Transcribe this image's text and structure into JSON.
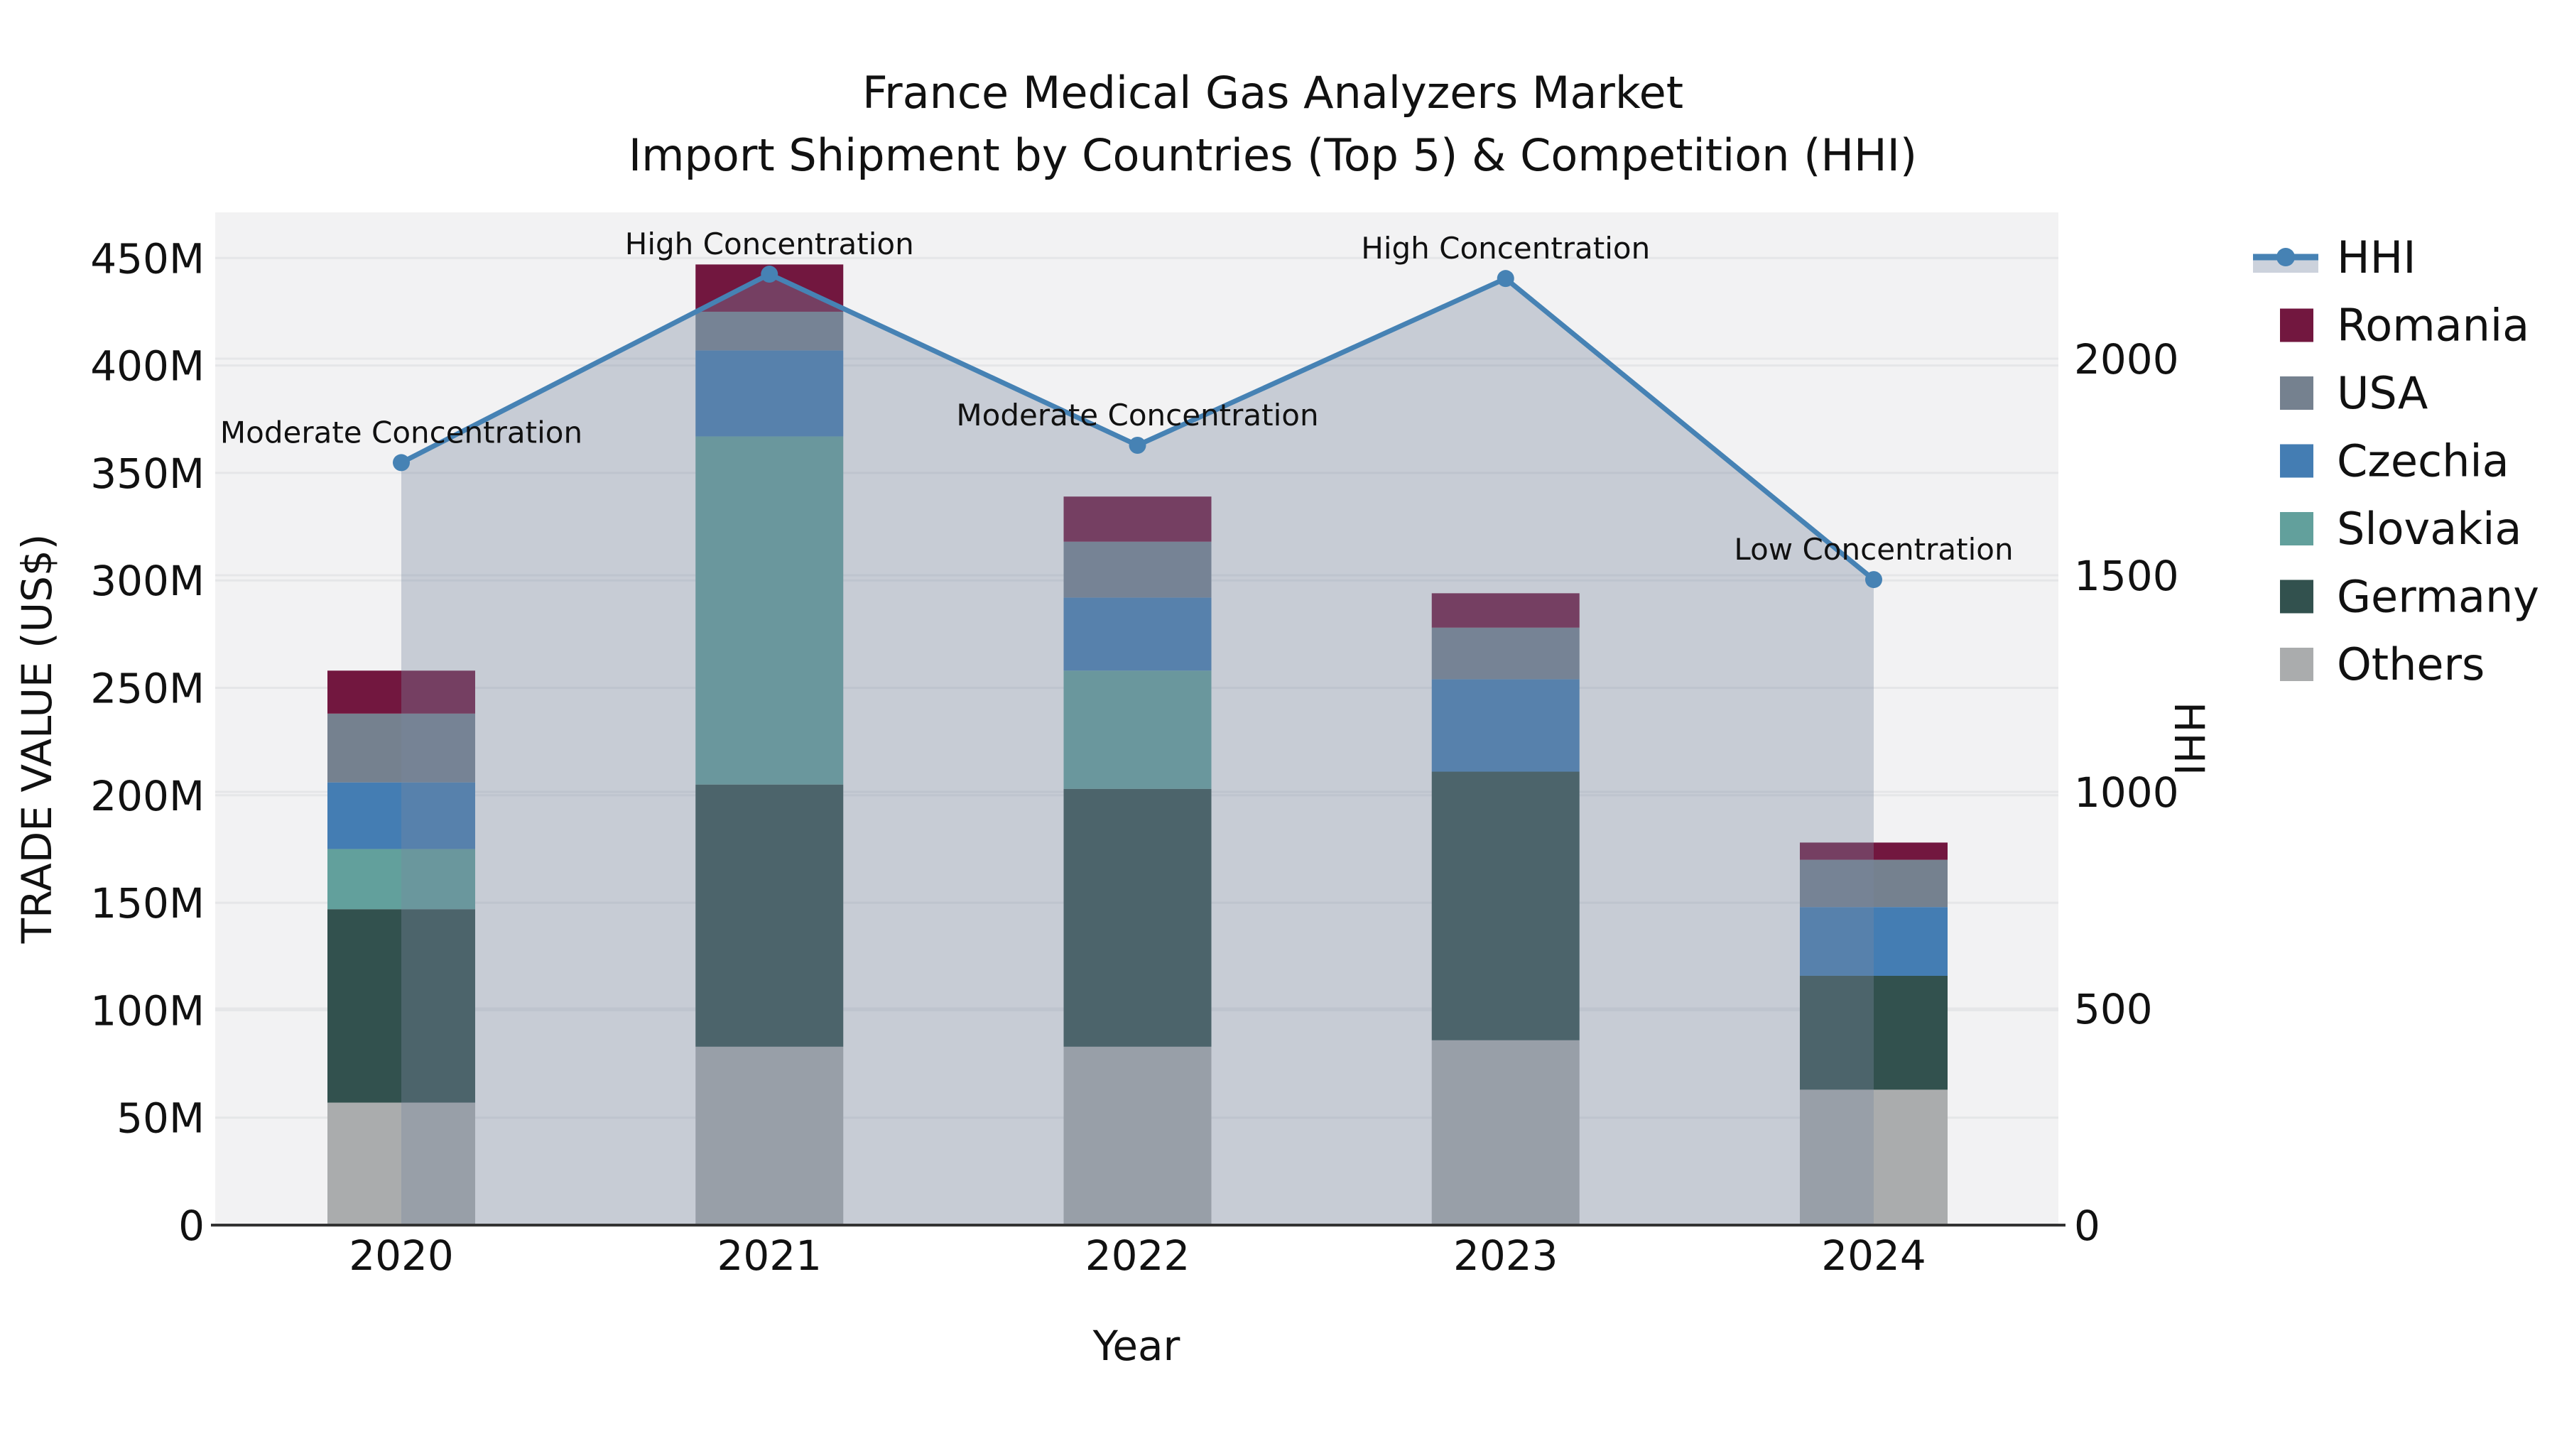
{
  "title": "France Medical Gas Analyzers Market",
  "subtitle": "Import Shipment by Countries (Top 5) & Competition (HHI)",
  "chart_data": {
    "type": "bar+line",
    "x_label": "Year",
    "categories": [
      "2020",
      "2021",
      "2022",
      "2023",
      "2024"
    ],
    "y_left": {
      "label": "TRADE VALUE (US$)",
      "unit": "million US$",
      "tick_labels": [
        "0",
        "50M",
        "100M",
        "150M",
        "200M",
        "250M",
        "300M",
        "350M",
        "400M",
        "450M"
      ],
      "tick_values": [
        0,
        50,
        100,
        150,
        200,
        250,
        300,
        350,
        400,
        450
      ],
      "range": [
        0,
        471
      ]
    },
    "y_right": {
      "label": "HHI",
      "tick_labels": [
        "0",
        "500",
        "1000",
        "1500",
        "2000"
      ],
      "tick_values": [
        0,
        500,
        1000,
        1500,
        2000
      ],
      "range": [
        0,
        2337
      ]
    },
    "series": [
      {
        "name": "Others",
        "color": "#aaacad",
        "values": [
          57,
          83,
          83,
          86,
          63
        ]
      },
      {
        "name": "Germany",
        "color": "#32514e",
        "values": [
          90,
          122,
          120,
          125,
          53
        ]
      },
      {
        "name": "Slovakia",
        "color": "#62a09c",
        "values": [
          28,
          162,
          55,
          0,
          0
        ]
      },
      {
        "name": "Czechia",
        "color": "#447db3",
        "values": [
          31,
          40,
          34,
          43,
          32
        ]
      },
      {
        "name": "USA",
        "color": "#75818f",
        "values": [
          32,
          18,
          26,
          24,
          22
        ]
      },
      {
        "name": "Romania",
        "color": "#72173f",
        "values": [
          20,
          22,
          21,
          16,
          8
        ]
      }
    ],
    "bar_totals": [
      258,
      447,
      339,
      294,
      178
    ],
    "line": {
      "name": "HHI",
      "color": "#4682b4",
      "area_fill": "rgba(123,136,160,0.36)",
      "legend_band_color": "#ccd2dc",
      "values": [
        1760,
        2195,
        1800,
        2185,
        1490
      ]
    },
    "annotations": [
      {
        "x": "2020",
        "text": "Moderate Concentration"
      },
      {
        "x": "2021",
        "text": "High Concentration"
      },
      {
        "x": "2022",
        "text": "Moderate Concentration"
      },
      {
        "x": "2023",
        "text": "High Concentration"
      },
      {
        "x": "2024",
        "text": "Low Concentration"
      }
    ],
    "legend": [
      "HHI",
      "Romania",
      "USA",
      "Czechia",
      "Slovakia",
      "Germany",
      "Others"
    ],
    "legend_position": "upper right outside",
    "grid": true,
    "plot_bg_color": "#f2f2f3",
    "grid_color": "#e5e6e8",
    "spine_color": "#333333"
  }
}
